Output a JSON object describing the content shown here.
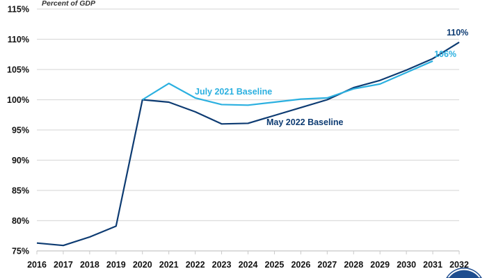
{
  "chart_data": {
    "type": "line",
    "subtitle": "Percent of GDP",
    "x": [
      2016,
      2017,
      2018,
      2019,
      2020,
      2021,
      2022,
      2023,
      2024,
      2025,
      2026,
      2027,
      2028,
      2029,
      2030,
      2031,
      2032
    ],
    "ylim": [
      75,
      115
    ],
    "yticks": [
      "75%",
      "80%",
      "85%",
      "90%",
      "95%",
      "100%",
      "105%",
      "110%",
      "115%"
    ],
    "grid": true,
    "series": [
      {
        "name": "May 2022 Baseline",
        "color": "#0d3b72",
        "values": [
          76.3,
          75.9,
          77.3,
          79.1,
          100.0,
          99.6,
          98.0,
          96.0,
          96.1,
          97.4,
          98.7,
          100.0,
          102.0,
          103.2,
          104.9,
          106.8,
          109.5
        ],
        "end_label": "110%"
      },
      {
        "name": "July 2021 Baseline",
        "color": "#2bb0e0",
        "values": [
          null,
          null,
          null,
          null,
          100.0,
          102.7,
          100.3,
          99.2,
          99.1,
          99.6,
          100.1,
          100.3,
          101.8,
          102.6,
          104.5,
          106.4,
          null
        ],
        "end_label": "106%"
      }
    ]
  }
}
